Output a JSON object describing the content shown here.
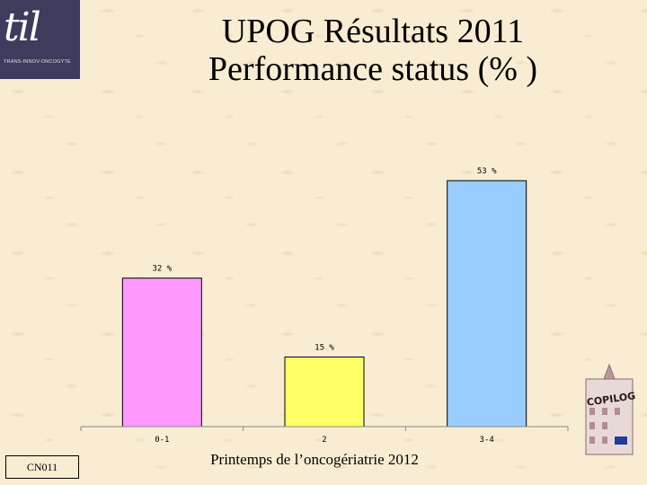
{
  "logo": {
    "mark": "til",
    "text": "TRANS-INNOV-ONCOGYTE"
  },
  "title": {
    "line1": "UPOG Résultats 2011",
    "line2": "Performance status (% )"
  },
  "chart_data": {
    "type": "bar",
    "categories": [
      "0-1",
      "2",
      "3-4"
    ],
    "values": [
      32,
      15,
      53
    ],
    "data_labels": [
      "32 %",
      "15 %",
      "53 %"
    ],
    "colors": [
      "#ff99ff",
      "#ffff66",
      "#99ccff"
    ],
    "title": "",
    "xlabel": "",
    "ylabel": "",
    "ylim": [
      0,
      60
    ],
    "grid": false,
    "legend": "none"
  },
  "footer": {
    "code": "CN011",
    "center": "Printemps de l’oncogériatrie 2012"
  },
  "badge": {
    "text": "COPILOG"
  }
}
